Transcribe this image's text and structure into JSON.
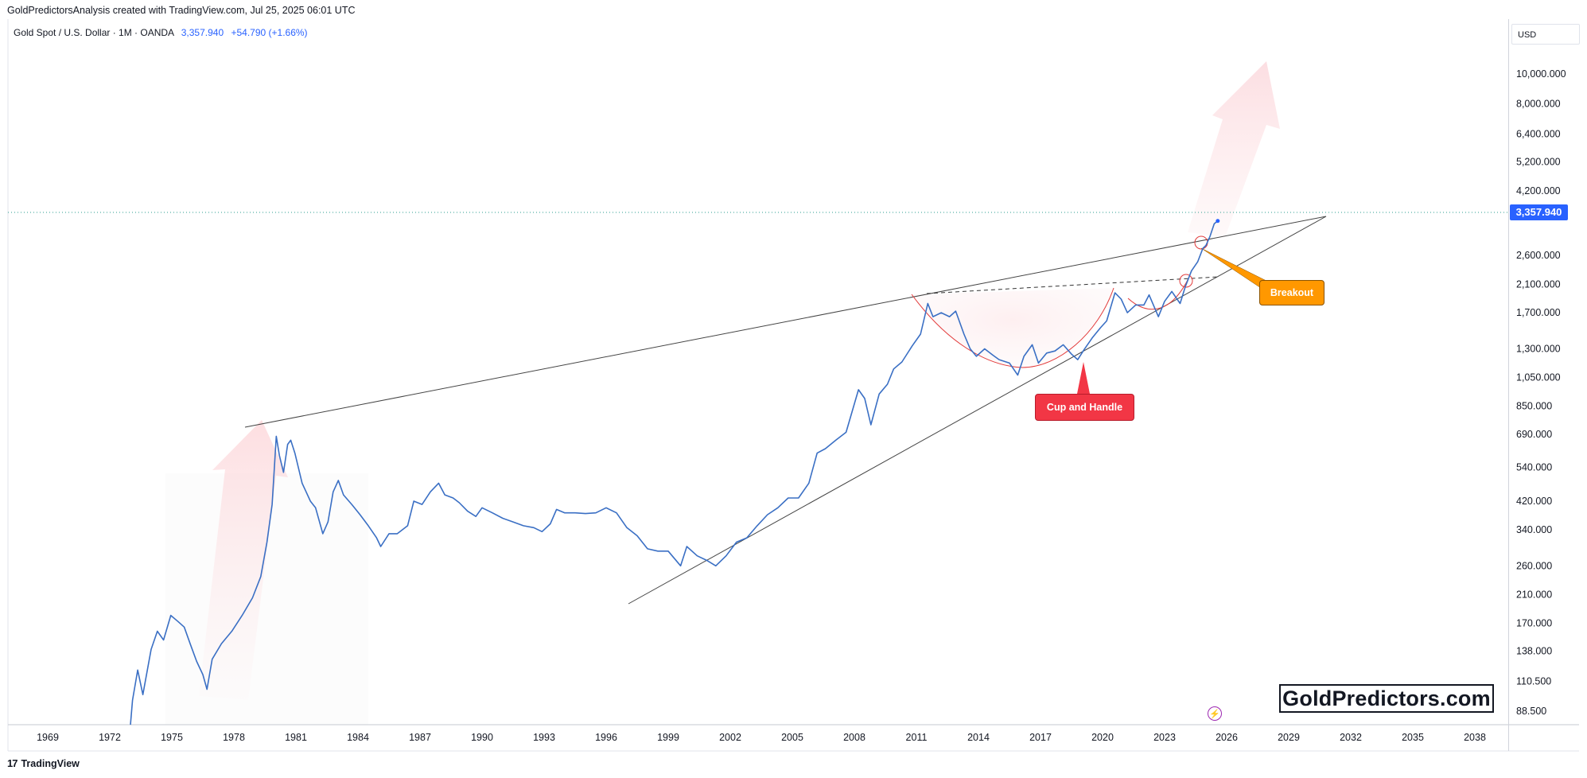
{
  "header": {
    "title": "GoldPredictorsAnalysis created with TradingView.com, Jul 25, 2025 06:01 UTC"
  },
  "symbol_bar": {
    "name": "Gold Spot / U.S. Dollar · 1M · OANDA",
    "price": "3,357.940",
    "change": "+54.790 (+1.66%)"
  },
  "price_axis": {
    "currency": "USD",
    "last_price": "3,357.940"
  },
  "annotations": {
    "cup_and_handle": "Cup and Handle",
    "breakout": "Breakout"
  },
  "watermark": "GoldPredictors.com",
  "footer": {
    "brand": "TradingView"
  },
  "icons": {
    "footer": "tradingview-logo-icon",
    "lightning": "lightning-icon"
  },
  "colors": {
    "price_line": "#3a6fc4",
    "badge": "#2962ff",
    "callout_cup": "#f23645",
    "callout_breakout": "#ff9800",
    "cup_arc": "#e23a3a",
    "trend_line": "#444444"
  },
  "chart_data": {
    "type": "line",
    "scale": "log",
    "ylim": [
      80,
      12500
    ],
    "xlim": [
      1967.25,
      2040.7
    ],
    "x_ticks": [
      1969,
      1972,
      1975,
      1978,
      1981,
      1984,
      1987,
      1990,
      1993,
      1996,
      1999,
      2002,
      2005,
      2008,
      2011,
      2014,
      2017,
      2020,
      2023,
      2026,
      2029,
      2032,
      2035,
      2038
    ],
    "y_ticks": [
      {
        "value": 88.5,
        "label": "88.500"
      },
      {
        "value": 110.5,
        "label": "110.500"
      },
      {
        "value": 138,
        "label": "138.000"
      },
      {
        "value": 170,
        "label": "170.000"
      },
      {
        "value": 210,
        "label": "210.000"
      },
      {
        "value": 260,
        "label": "260.000"
      },
      {
        "value": 340,
        "label": "340.000"
      },
      {
        "value": 420,
        "label": "420.000"
      },
      {
        "value": 540,
        "label": "540.000"
      },
      {
        "value": 690,
        "label": "690.000"
      },
      {
        "value": 850,
        "label": "850.000"
      },
      {
        "value": 1050,
        "label": "1,050.000"
      },
      {
        "value": 1300,
        "label": "1,300.000"
      },
      {
        "value": 1700,
        "label": "1,700.000"
      },
      {
        "value": 2100,
        "label": "2,100.000"
      },
      {
        "value": 2600,
        "label": "2,600.000"
      },
      {
        "value": 4200,
        "label": "4,200.000"
      },
      {
        "value": 5200,
        "label": "5,200.000"
      },
      {
        "value": 6400,
        "label": "6,400.000"
      },
      {
        "value": 8000,
        "label": "8,000.000"
      },
      {
        "value": 10000,
        "label": "10,000.000"
      }
    ],
    "series": [
      {
        "points": [
          [
            1973.0,
            80
          ],
          [
            1973.1,
            96
          ],
          [
            1973.35,
            120
          ],
          [
            1973.6,
            100
          ],
          [
            1974.0,
            140
          ],
          [
            1974.3,
            160
          ],
          [
            1974.6,
            150
          ],
          [
            1974.95,
            180
          ],
          [
            1975.3,
            172
          ],
          [
            1975.6,
            165
          ],
          [
            1975.9,
            145
          ],
          [
            1976.2,
            128
          ],
          [
            1976.5,
            116
          ],
          [
            1976.7,
            104
          ],
          [
            1976.95,
            130
          ],
          [
            1977.4,
            146
          ],
          [
            1977.9,
            160
          ],
          [
            1978.4,
            180
          ],
          [
            1978.9,
            205
          ],
          [
            1979.3,
            240
          ],
          [
            1979.6,
            310
          ],
          [
            1979.85,
            410
          ],
          [
            1980.05,
            680
          ],
          [
            1980.2,
            590
          ],
          [
            1980.4,
            520
          ],
          [
            1980.6,
            640
          ],
          [
            1980.75,
            660
          ],
          [
            1980.95,
            600
          ],
          [
            1981.3,
            480
          ],
          [
            1981.7,
            420
          ],
          [
            1981.95,
            400
          ],
          [
            1982.3,
            330
          ],
          [
            1982.55,
            360
          ],
          [
            1982.8,
            450
          ],
          [
            1983.05,
            490
          ],
          [
            1983.3,
            440
          ],
          [
            1983.7,
            410
          ],
          [
            1984.1,
            380
          ],
          [
            1984.5,
            350
          ],
          [
            1984.9,
            320
          ],
          [
            1985.1,
            300
          ],
          [
            1985.5,
            330
          ],
          [
            1985.9,
            330
          ],
          [
            1986.4,
            350
          ],
          [
            1986.7,
            420
          ],
          [
            1987.1,
            410
          ],
          [
            1987.5,
            450
          ],
          [
            1987.9,
            480
          ],
          [
            1988.2,
            440
          ],
          [
            1988.6,
            430
          ],
          [
            1988.9,
            415
          ],
          [
            1989.3,
            390
          ],
          [
            1989.7,
            375
          ],
          [
            1990.0,
            400
          ],
          [
            1990.5,
            385
          ],
          [
            1991.0,
            370
          ],
          [
            1991.5,
            360
          ],
          [
            1992.0,
            350
          ],
          [
            1992.5,
            345
          ],
          [
            1992.9,
            335
          ],
          [
            1993.3,
            355
          ],
          [
            1993.6,
            395
          ],
          [
            1994.0,
            385
          ],
          [
            1994.5,
            385
          ],
          [
            1995.0,
            383
          ],
          [
            1995.5,
            385
          ],
          [
            1996.0,
            400
          ],
          [
            1996.5,
            385
          ],
          [
            1997.0,
            345
          ],
          [
            1997.5,
            325
          ],
          [
            1998.0,
            295
          ],
          [
            1998.5,
            290
          ],
          [
            1999.0,
            290
          ],
          [
            1999.6,
            260
          ],
          [
            1999.9,
            300
          ],
          [
            2000.4,
            280
          ],
          [
            2000.9,
            270
          ],
          [
            2001.3,
            260
          ],
          [
            2001.8,
            280
          ],
          [
            2002.3,
            310
          ],
          [
            2002.8,
            320
          ],
          [
            2003.3,
            350
          ],
          [
            2003.8,
            380
          ],
          [
            2004.3,
            400
          ],
          [
            2004.8,
            430
          ],
          [
            2005.3,
            430
          ],
          [
            2005.8,
            480
          ],
          [
            2006.2,
            600
          ],
          [
            2006.6,
            620
          ],
          [
            2007.1,
            660
          ],
          [
            2007.6,
            700
          ],
          [
            2007.9,
            820
          ],
          [
            2008.2,
            960
          ],
          [
            2008.5,
            900
          ],
          [
            2008.8,
            740
          ],
          [
            2009.2,
            930
          ],
          [
            2009.6,
            1000
          ],
          [
            2009.9,
            1120
          ],
          [
            2010.3,
            1180
          ],
          [
            2010.8,
            1330
          ],
          [
            2011.2,
            1450
          ],
          [
            2011.55,
            1820
          ],
          [
            2011.8,
            1650
          ],
          [
            2012.2,
            1700
          ],
          [
            2012.6,
            1650
          ],
          [
            2012.9,
            1720
          ],
          [
            2013.3,
            1450
          ],
          [
            2013.6,
            1300
          ],
          [
            2013.9,
            1230
          ],
          [
            2014.3,
            1300
          ],
          [
            2014.7,
            1240
          ],
          [
            2015.0,
            1200
          ],
          [
            2015.5,
            1170
          ],
          [
            2015.9,
            1070
          ],
          [
            2016.2,
            1230
          ],
          [
            2016.6,
            1340
          ],
          [
            2016.9,
            1170
          ],
          [
            2017.3,
            1260
          ],
          [
            2017.7,
            1280
          ],
          [
            2018.1,
            1340
          ],
          [
            2018.5,
            1250
          ],
          [
            2018.8,
            1200
          ],
          [
            2019.1,
            1290
          ],
          [
            2019.5,
            1410
          ],
          [
            2019.9,
            1520
          ],
          [
            2020.2,
            1600
          ],
          [
            2020.6,
            1970
          ],
          [
            2020.9,
            1880
          ],
          [
            2021.2,
            1700
          ],
          [
            2021.6,
            1800
          ],
          [
            2022.0,
            1800
          ],
          [
            2022.25,
            1940
          ],
          [
            2022.7,
            1650
          ],
          [
            2023.0,
            1850
          ],
          [
            2023.35,
            1990
          ],
          [
            2023.75,
            1820
          ],
          [
            2024.0,
            2060
          ],
          [
            2024.3,
            2320
          ],
          [
            2024.6,
            2480
          ],
          [
            2024.85,
            2740
          ],
          [
            2025.0,
            2800
          ],
          [
            2025.2,
            3000
          ],
          [
            2025.4,
            3290
          ],
          [
            2025.57,
            3357.94
          ]
        ]
      }
    ]
  }
}
